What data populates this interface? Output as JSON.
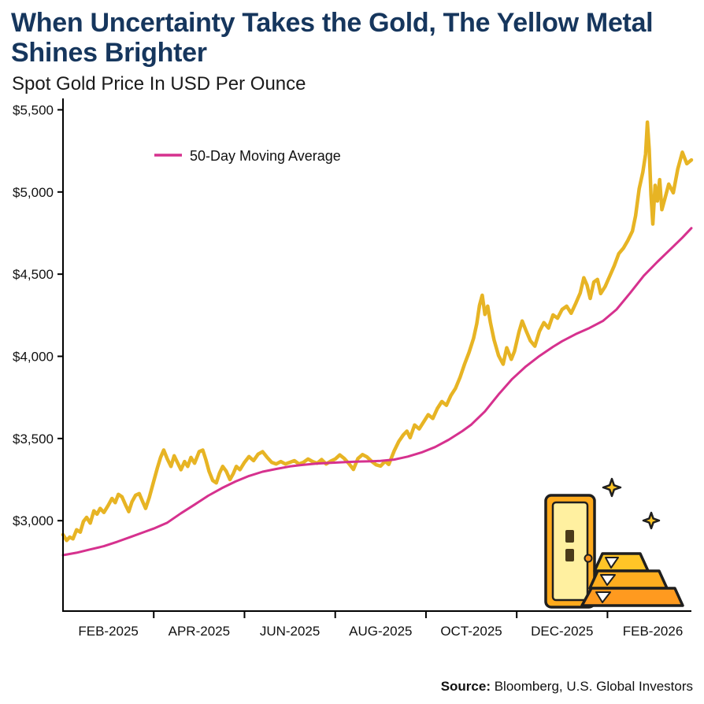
{
  "header": {
    "title": "When Uncertainty Takes the Gold, The Yellow Metal Shines Brighter",
    "subtitle": "Spot Gold Price In USD Per Ounce"
  },
  "footer": {
    "source_label": "Source:",
    "source_text": " Bloomberg, U.S. Global Investors"
  },
  "colors": {
    "title_navy": "#16365D",
    "gold_line": "#E7B424",
    "ma_line": "#D6318E",
    "axis": "#000000"
  },
  "chart_data": {
    "type": "line",
    "title": "When Uncertainty Takes the Gold, The Yellow Metal Shines Brighter",
    "subtitle": "Spot Gold Price In USD Per Ounce",
    "xlabel": "",
    "ylabel": "Spot Gold Price In USD Per Ounce",
    "x_unit": "months since Jan-2025",
    "xlim": [
      0,
      13.85
    ],
    "ylim": [
      2450,
      5550
    ],
    "grid": false,
    "legend_position": "upper-left-inside",
    "legend": [
      {
        "name": "50-Day Moving Average",
        "color": "#D6318E"
      }
    ],
    "y_ticks": [
      {
        "value": 3000,
        "label": "$3,000"
      },
      {
        "value": 3500,
        "label": "$3,500"
      },
      {
        "value": 4000,
        "label": "$4,000"
      },
      {
        "value": 4500,
        "label": "$4,500"
      },
      {
        "value": 5000,
        "label": "$5,000"
      },
      {
        "value": 5500,
        "label": "$5,500"
      }
    ],
    "x_tick_labels": [
      {
        "pos": 1,
        "label": "FEB-2025"
      },
      {
        "pos": 3,
        "label": "APR-2025"
      },
      {
        "pos": 5,
        "label": "JUN-2025"
      },
      {
        "pos": 7,
        "label": "AUG-2025"
      },
      {
        "pos": 9,
        "label": "OCT-2025"
      },
      {
        "pos": 11,
        "label": "DEC-2025"
      },
      {
        "pos": 13,
        "label": "FEB-2026"
      }
    ],
    "x_minor_ticks": [
      2,
      4,
      6,
      8,
      10,
      12
    ],
    "series": [
      {
        "name": "Spot Gold Price",
        "color": "#E7B424",
        "width": 4.5,
        "points": [
          [
            0.0,
            2915
          ],
          [
            0.08,
            2880
          ],
          [
            0.15,
            2900
          ],
          [
            0.22,
            2890
          ],
          [
            0.3,
            2945
          ],
          [
            0.38,
            2930
          ],
          [
            0.45,
            2995
          ],
          [
            0.52,
            3020
          ],
          [
            0.6,
            2985
          ],
          [
            0.68,
            3060
          ],
          [
            0.75,
            3040
          ],
          [
            0.82,
            3075
          ],
          [
            0.9,
            3050
          ],
          [
            1.0,
            3095
          ],
          [
            1.08,
            3135
          ],
          [
            1.15,
            3110
          ],
          [
            1.22,
            3160
          ],
          [
            1.3,
            3145
          ],
          [
            1.38,
            3095
          ],
          [
            1.45,
            3055
          ],
          [
            1.52,
            3115
          ],
          [
            1.6,
            3155
          ],
          [
            1.68,
            3165
          ],
          [
            1.75,
            3120
          ],
          [
            1.82,
            3075
          ],
          [
            1.9,
            3140
          ],
          [
            2.0,
            3240
          ],
          [
            2.08,
            3320
          ],
          [
            2.15,
            3385
          ],
          [
            2.22,
            3430
          ],
          [
            2.3,
            3375
          ],
          [
            2.38,
            3330
          ],
          [
            2.45,
            3395
          ],
          [
            2.52,
            3355
          ],
          [
            2.6,
            3310
          ],
          [
            2.68,
            3360
          ],
          [
            2.75,
            3330
          ],
          [
            2.82,
            3385
          ],
          [
            2.9,
            3350
          ],
          [
            3.0,
            3420
          ],
          [
            3.08,
            3430
          ],
          [
            3.15,
            3370
          ],
          [
            3.22,
            3300
          ],
          [
            3.3,
            3245
          ],
          [
            3.38,
            3230
          ],
          [
            3.45,
            3290
          ],
          [
            3.52,
            3330
          ],
          [
            3.6,
            3300
          ],
          [
            3.68,
            3250
          ],
          [
            3.75,
            3285
          ],
          [
            3.82,
            3330
          ],
          [
            3.9,
            3310
          ],
          [
            4.0,
            3355
          ],
          [
            4.1,
            3390
          ],
          [
            4.2,
            3365
          ],
          [
            4.3,
            3405
          ],
          [
            4.4,
            3420
          ],
          [
            4.5,
            3385
          ],
          [
            4.6,
            3355
          ],
          [
            4.7,
            3345
          ],
          [
            4.8,
            3360
          ],
          [
            4.9,
            3345
          ],
          [
            5.0,
            3355
          ],
          [
            5.1,
            3365
          ],
          [
            5.2,
            3345
          ],
          [
            5.3,
            3355
          ],
          [
            5.4,
            3375
          ],
          [
            5.5,
            3360
          ],
          [
            5.6,
            3350
          ],
          [
            5.7,
            3372
          ],
          [
            5.8,
            3345
          ],
          [
            5.9,
            3362
          ],
          [
            6.0,
            3375
          ],
          [
            6.1,
            3400
          ],
          [
            6.2,
            3378
          ],
          [
            6.3,
            3348
          ],
          [
            6.4,
            3312
          ],
          [
            6.5,
            3378
          ],
          [
            6.6,
            3402
          ],
          [
            6.7,
            3388
          ],
          [
            6.8,
            3362
          ],
          [
            6.9,
            3340
          ],
          [
            7.0,
            3332
          ],
          [
            7.1,
            3362
          ],
          [
            7.18,
            3342
          ],
          [
            7.3,
            3425
          ],
          [
            7.4,
            3482
          ],
          [
            7.5,
            3522
          ],
          [
            7.58,
            3545
          ],
          [
            7.65,
            3505
          ],
          [
            7.75,
            3582
          ],
          [
            7.85,
            3558
          ],
          [
            7.95,
            3602
          ],
          [
            8.05,
            3645
          ],
          [
            8.15,
            3622
          ],
          [
            8.25,
            3682
          ],
          [
            8.35,
            3725
          ],
          [
            8.45,
            3702
          ],
          [
            8.55,
            3762
          ],
          [
            8.65,
            3805
          ],
          [
            8.75,
            3872
          ],
          [
            8.85,
            3952
          ],
          [
            8.95,
            4025
          ],
          [
            9.05,
            4110
          ],
          [
            9.12,
            4200
          ],
          [
            9.18,
            4310
          ],
          [
            9.24,
            4372
          ],
          [
            9.3,
            4255
          ],
          [
            9.36,
            4305
          ],
          [
            9.42,
            4205
          ],
          [
            9.5,
            4100
          ],
          [
            9.6,
            4005
          ],
          [
            9.7,
            3952
          ],
          [
            9.78,
            4052
          ],
          [
            9.88,
            3982
          ],
          [
            9.95,
            4030
          ],
          [
            10.05,
            4150
          ],
          [
            10.12,
            4215
          ],
          [
            10.2,
            4160
          ],
          [
            10.3,
            4095
          ],
          [
            10.4,
            4062
          ],
          [
            10.5,
            4152
          ],
          [
            10.6,
            4205
          ],
          [
            10.7,
            4172
          ],
          [
            10.8,
            4252
          ],
          [
            10.9,
            4232
          ],
          [
            11.0,
            4285
          ],
          [
            11.1,
            4305
          ],
          [
            11.2,
            4262
          ],
          [
            11.3,
            4322
          ],
          [
            11.4,
            4385
          ],
          [
            11.48,
            4478
          ],
          [
            11.55,
            4432
          ],
          [
            11.62,
            4352
          ],
          [
            11.7,
            4452
          ],
          [
            11.78,
            4468
          ],
          [
            11.85,
            4382
          ],
          [
            11.95,
            4425
          ],
          [
            12.05,
            4488
          ],
          [
            12.15,
            4552
          ],
          [
            12.25,
            4625
          ],
          [
            12.35,
            4658
          ],
          [
            12.45,
            4705
          ],
          [
            12.55,
            4762
          ],
          [
            12.62,
            4855
          ],
          [
            12.7,
            5020
          ],
          [
            12.78,
            5120
          ],
          [
            12.84,
            5230
          ],
          [
            12.88,
            5425
          ],
          [
            12.92,
            5260
          ],
          [
            12.96,
            4980
          ],
          [
            13.0,
            4805
          ],
          [
            13.05,
            5040
          ],
          [
            13.1,
            4945
          ],
          [
            13.15,
            5075
          ],
          [
            13.2,
            4892
          ],
          [
            13.28,
            4975
          ],
          [
            13.35,
            5048
          ],
          [
            13.45,
            4995
          ],
          [
            13.55,
            5140
          ],
          [
            13.65,
            5242
          ],
          [
            13.75,
            5172
          ],
          [
            13.85,
            5195
          ]
        ]
      },
      {
        "name": "50-Day Moving Average",
        "color": "#D6318E",
        "width": 3,
        "points": [
          [
            0,
            2790
          ],
          [
            0.3,
            2805
          ],
          [
            0.6,
            2825
          ],
          [
            0.9,
            2845
          ],
          [
            1.2,
            2872
          ],
          [
            1.5,
            2902
          ],
          [
            1.8,
            2932
          ],
          [
            2.0,
            2952
          ],
          [
            2.3,
            2988
          ],
          [
            2.6,
            3045
          ],
          [
            2.9,
            3098
          ],
          [
            3.2,
            3152
          ],
          [
            3.5,
            3198
          ],
          [
            3.8,
            3238
          ],
          [
            4.1,
            3272
          ],
          [
            4.4,
            3298
          ],
          [
            4.7,
            3315
          ],
          [
            5.0,
            3330
          ],
          [
            5.3,
            3340
          ],
          [
            5.6,
            3348
          ],
          [
            5.9,
            3352
          ],
          [
            6.2,
            3356
          ],
          [
            6.5,
            3360
          ],
          [
            6.8,
            3362
          ],
          [
            7.0,
            3364
          ],
          [
            7.3,
            3372
          ],
          [
            7.6,
            3390
          ],
          [
            7.9,
            3415
          ],
          [
            8.2,
            3448
          ],
          [
            8.5,
            3492
          ],
          [
            8.8,
            3545
          ],
          [
            9.0,
            3585
          ],
          [
            9.3,
            3665
          ],
          [
            9.6,
            3768
          ],
          [
            9.9,
            3862
          ],
          [
            10.2,
            3938
          ],
          [
            10.5,
            4002
          ],
          [
            10.8,
            4058
          ],
          [
            11.0,
            4092
          ],
          [
            11.3,
            4135
          ],
          [
            11.6,
            4172
          ],
          [
            11.9,
            4215
          ],
          [
            12.2,
            4285
          ],
          [
            12.5,
            4385
          ],
          [
            12.8,
            4490
          ],
          [
            13.1,
            4575
          ],
          [
            13.4,
            4655
          ],
          [
            13.65,
            4722
          ],
          [
            13.85,
            4780
          ]
        ]
      }
    ]
  }
}
